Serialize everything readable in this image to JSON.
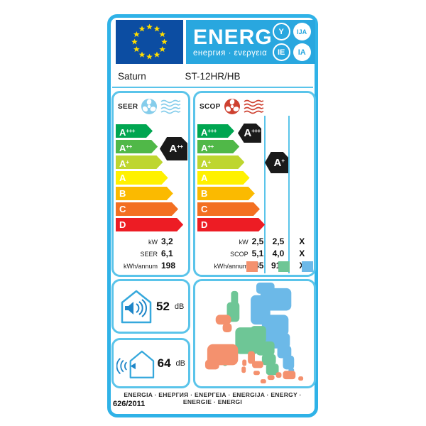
{
  "header": {
    "logo_text": "ENERG",
    "logo_sub": "енергия · ενεργεια",
    "badges": [
      {
        "text": "Y",
        "solid": false
      },
      {
        "text": "IJA",
        "solid": true
      },
      {
        "text": "IE",
        "solid": false
      },
      {
        "text": "IA",
        "solid": true
      }
    ]
  },
  "brand": "Saturn",
  "model": "ST-12HR/HB",
  "scale": {
    "grades": [
      {
        "letter": "A",
        "sup": "+++",
        "color": "#00A651"
      },
      {
        "letter": "A",
        "sup": "++",
        "color": "#50B848"
      },
      {
        "letter": "A",
        "sup": "+",
        "color": "#BED62F"
      },
      {
        "letter": "A",
        "sup": "",
        "color": "#FFF100"
      },
      {
        "letter": "B",
        "sup": "",
        "color": "#FBBA00"
      },
      {
        "letter": "C",
        "sup": "",
        "color": "#F36F21"
      },
      {
        "letter": "D",
        "sup": "",
        "color": "#ED1C24"
      }
    ]
  },
  "seer_panel": {
    "title": "SEER",
    "badge": {
      "letter": "A",
      "sup": "++"
    },
    "rows": [
      {
        "label": "kW",
        "value": "3,2"
      },
      {
        "label": "SEER",
        "value": "6,1"
      },
      {
        "label": "kWh/annum",
        "value": "198"
      }
    ]
  },
  "scop_panel": {
    "title": "SCOP",
    "badges": [
      {
        "letter": "A",
        "sup": "+++",
        "zone": "zone-1"
      },
      {
        "letter": "A",
        "sup": "+",
        "zone": "zone-2"
      }
    ],
    "rows": [
      {
        "label": "kW",
        "values": [
          "2,5",
          "2,5",
          "X"
        ]
      },
      {
        "label": "SCOP",
        "values": [
          "5,1",
          "4,0",
          "X"
        ]
      },
      {
        "label": "kWh/annum",
        "values": [
          "745",
          "916",
          "X"
        ]
      }
    ],
    "zone_colors": {
      "warmer": "#F4916E",
      "average": "#6EC696",
      "colder": "#6CB9E8"
    }
  },
  "sound": {
    "indoor": {
      "value": "52",
      "unit": "dB"
    },
    "outdoor": {
      "value": "64",
      "unit": "dB"
    }
  },
  "footer": {
    "languages": "ENERGIA · ЕНЕРГИЯ · ΕΝΕΡΓΕΙΑ · ENERGIJA · ENERGY · ENERGIE · ENERGI",
    "regulation": "626/2011"
  },
  "colors": {
    "border": "#2FB2E7",
    "panel_border": "#5AC4EA",
    "header_band": "#29A7DF",
    "eu_flag_bg": "#0C4DA2",
    "star": "#FFDD00",
    "badge_bg": "#1A1A1A",
    "seer_icon": "#85CDEB",
    "scop_icon": "#CE4130",
    "house_stroke": "#35A8DC",
    "speaker_fill": "#1F86C8"
  }
}
